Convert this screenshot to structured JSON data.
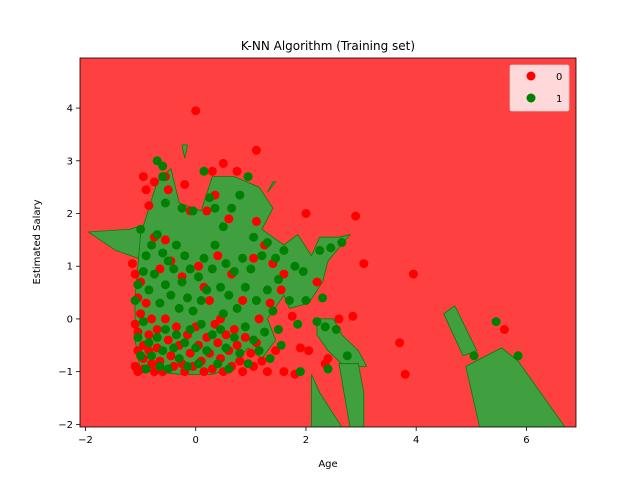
{
  "chart_data": {
    "type": "scatter",
    "title": "K-NN Algorithm (Training set)",
    "xlabel": "Age",
    "ylabel": "Estimated Salary",
    "xlim": [
      -2.1,
      6.9
    ],
    "ylim": [
      -2.05,
      4.95
    ],
    "xticks": [
      -2,
      0,
      2,
      4,
      6
    ],
    "yticks": [
      -2,
      -1,
      0,
      1,
      2,
      3,
      4
    ],
    "grid": false,
    "legend": {
      "placement": "top-right",
      "entries": [
        "0",
        "1"
      ]
    },
    "colors": {
      "class0": "#ff0000",
      "class1": "#008000",
      "region0": "#ff4040",
      "region1": "#40a040"
    },
    "background_class": "0",
    "decision_regions": [
      {
        "class": "1",
        "points": [
          [
            -1.95,
            1.65
          ],
          [
            -1.2,
            1.7
          ],
          [
            -0.5,
            1.9
          ],
          [
            -0.3,
            1.5
          ],
          [
            -0.9,
            1.1
          ],
          [
            -1.45,
            1.3
          ]
        ]
      },
      {
        "class": "1",
        "points": [
          [
            -1.1,
            0.4
          ],
          [
            -1.0,
            1.6
          ],
          [
            -0.7,
            2.6
          ],
          [
            -0.45,
            2.85
          ],
          [
            -0.3,
            2.2
          ],
          [
            0.1,
            2.05
          ],
          [
            0.3,
            2.7
          ],
          [
            0.7,
            2.7
          ],
          [
            1.15,
            2.5
          ],
          [
            1.4,
            2.1
          ],
          [
            1.2,
            1.7
          ],
          [
            1.6,
            1.4
          ],
          [
            1.85,
            1.6
          ],
          [
            2.1,
            1.2
          ],
          [
            2.25,
            1.55
          ],
          [
            2.6,
            1.55
          ],
          [
            2.8,
            1.6
          ],
          [
            2.4,
            1.1
          ],
          [
            2.3,
            0.7
          ],
          [
            2.05,
            0.3
          ],
          [
            1.7,
            0.2
          ],
          [
            1.6,
            0.45
          ],
          [
            1.3,
            0.0
          ],
          [
            1.45,
            -0.4
          ],
          [
            1.2,
            -0.75
          ],
          [
            0.95,
            -0.55
          ],
          [
            0.6,
            -0.95
          ],
          [
            0.3,
            -1.05
          ],
          [
            -0.3,
            -1.05
          ],
          [
            -0.7,
            -1.0
          ],
          [
            -1.0,
            -1.0
          ],
          [
            -1.1,
            -0.4
          ]
        ]
      },
      {
        "class": "1",
        "points": [
          [
            -0.25,
            3.3
          ],
          [
            -0.15,
            3.3
          ],
          [
            -0.2,
            3.05
          ]
        ]
      },
      {
        "class": "1",
        "points": [
          [
            1.4,
            2.6
          ],
          [
            1.45,
            2.6
          ],
          [
            1.3,
            2.4
          ]
        ]
      },
      {
        "class": "1",
        "points": [
          [
            2.2,
            0.0
          ],
          [
            2.5,
            0.0
          ],
          [
            2.65,
            -0.3
          ],
          [
            2.95,
            -0.6
          ],
          [
            3.1,
            -0.9
          ],
          [
            2.7,
            -0.9
          ],
          [
            2.4,
            -0.6
          ],
          [
            2.2,
            -0.3
          ]
        ]
      },
      {
        "class": "1",
        "points": [
          [
            2.6,
            -0.85
          ],
          [
            2.95,
            -0.85
          ],
          [
            3.05,
            -1.4
          ],
          [
            3.05,
            -2.05
          ],
          [
            2.8,
            -2.05
          ]
        ]
      },
      {
        "class": "1",
        "points": [
          [
            2.1,
            -1.05
          ],
          [
            2.25,
            -1.4
          ],
          [
            2.65,
            -2.05
          ],
          [
            2.1,
            -2.05
          ]
        ]
      },
      {
        "class": "1",
        "points": [
          [
            4.5,
            0.1
          ],
          [
            4.7,
            0.25
          ],
          [
            5.1,
            -0.6
          ],
          [
            4.85,
            -0.7
          ]
        ]
      },
      {
        "class": "1",
        "points": [
          [
            4.9,
            -0.9
          ],
          [
            5.55,
            -0.55
          ],
          [
            5.85,
            -0.8
          ],
          [
            6.7,
            -2.05
          ],
          [
            5.15,
            -2.05
          ]
        ]
      }
    ],
    "series": [
      {
        "name": "0",
        "points": [
          [
            -1.15,
            1.05
          ],
          [
            -1.1,
            0.85
          ],
          [
            -1.05,
            0.4
          ],
          [
            -1.1,
            -0.1
          ],
          [
            -1.05,
            -0.25
          ],
          [
            -1.05,
            -0.6
          ],
          [
            -1.1,
            -0.9
          ],
          [
            -1.05,
            -1.0
          ],
          [
            -1.0,
            0.1
          ],
          [
            -0.95,
            -0.5
          ],
          [
            -0.95,
            -0.75
          ],
          [
            -0.95,
            -0.95
          ],
          [
            -0.9,
            0.3
          ],
          [
            -0.85,
            -0.3
          ],
          [
            -0.85,
            -0.6
          ],
          [
            -0.8,
            -0.85
          ],
          [
            -0.75,
            -1.0
          ],
          [
            -0.7,
            -0.2
          ],
          [
            -0.7,
            -0.55
          ],
          [
            -0.65,
            -0.8
          ],
          [
            -0.6,
            -1.0
          ],
          [
            -0.55,
            0.0
          ],
          [
            -0.5,
            -0.4
          ],
          [
            -0.45,
            -0.7
          ],
          [
            -0.4,
            -0.9
          ],
          [
            -0.35,
            -0.15
          ],
          [
            -0.3,
            -0.5
          ],
          [
            -0.25,
            -0.85
          ],
          [
            -0.2,
            -1.0
          ],
          [
            -0.15,
            -0.3
          ],
          [
            -0.1,
            -0.65
          ],
          [
            -0.05,
            -0.9
          ],
          [
            0.0,
            -0.15
          ],
          [
            0.05,
            -0.5
          ],
          [
            0.1,
            -0.8
          ],
          [
            0.15,
            -1.0
          ],
          [
            0.2,
            -0.35
          ],
          [
            0.25,
            -0.65
          ],
          [
            0.3,
            -0.95
          ],
          [
            0.35,
            -0.1
          ],
          [
            0.4,
            -0.45
          ],
          [
            0.45,
            -0.75
          ],
          [
            0.5,
            -1.0
          ],
          [
            0.55,
            -0.3
          ],
          [
            0.6,
            -0.6
          ],
          [
            0.65,
            -0.9
          ],
          [
            0.7,
            -0.2
          ],
          [
            0.75,
            -0.5
          ],
          [
            0.8,
            -0.8
          ],
          [
            0.85,
            -1.0
          ],
          [
            0.9,
            -0.35
          ],
          [
            1.0,
            -0.65
          ],
          [
            1.05,
            -0.9
          ],
          [
            1.1,
            -0.45
          ],
          [
            1.2,
            -0.8
          ],
          [
            1.3,
            -1.0
          ],
          [
            1.45,
            -0.6
          ],
          [
            1.6,
            -1.0
          ],
          [
            1.8,
            -1.05
          ],
          [
            1.9,
            -0.55
          ],
          [
            2.05,
            -0.6
          ],
          [
            2.35,
            -0.85
          ],
          [
            2.4,
            -0.75
          ],
          [
            2.6,
            0.0
          ],
          [
            2.85,
            0.05
          ],
          [
            -0.95,
            2.7
          ],
          [
            -0.9,
            2.45
          ],
          [
            -0.85,
            2.15
          ],
          [
            -0.75,
            2.6
          ],
          [
            -0.55,
            2.7
          ],
          [
            -0.5,
            2.45
          ],
          [
            -0.2,
            2.55
          ],
          [
            -0.1,
            2.05
          ],
          [
            0.0,
            3.95
          ],
          [
            0.2,
            2.05
          ],
          [
            0.3,
            2.8
          ],
          [
            0.35,
            2.35
          ],
          [
            0.5,
            2.95
          ],
          [
            0.6,
            1.9
          ],
          [
            0.75,
            2.8
          ],
          [
            1.1,
            3.2
          ],
          [
            1.1,
            1.85
          ],
          [
            1.25,
            1.4
          ],
          [
            1.4,
            1.05
          ],
          [
            1.6,
            0.85
          ],
          [
            2.0,
            2.0
          ],
          [
            2.2,
            0.7
          ],
          [
            2.9,
            1.95
          ],
          [
            3.05,
            1.05
          ],
          [
            3.7,
            -0.45
          ],
          [
            3.8,
            -1.05
          ],
          [
            3.95,
            0.85
          ],
          [
            5.6,
            -0.2
          ],
          [
            -0.55,
            1.5
          ],
          [
            -0.65,
            0.95
          ],
          [
            -0.45,
            1.1
          ],
          [
            -0.25,
            0.8
          ],
          [
            0.05,
            1.0
          ],
          [
            0.25,
            0.35
          ],
          [
            0.4,
            1.2
          ],
          [
            0.65,
            0.85
          ],
          [
            0.85,
            0.35
          ],
          [
            1.05,
            1.15
          ],
          [
            1.35,
            0.3
          ],
          [
            1.55,
            0.55
          ],
          [
            1.75,
            0.05
          ],
          [
            -0.75,
            1.55
          ],
          [
            -1.0,
            0.7
          ],
          [
            -0.8,
            0.0
          ],
          [
            0.15,
            0.6
          ],
          [
            0.45,
            0.0
          ],
          [
            1.15,
            0.0
          ]
        ]
      },
      {
        "name": "1",
        "points": [
          [
            -0.7,
            3.0
          ],
          [
            -0.6,
            2.9
          ],
          [
            -0.6,
            2.7
          ],
          [
            -0.55,
            2.2
          ],
          [
            -0.25,
            2.1
          ],
          [
            -0.05,
            2.05
          ],
          [
            0.15,
            2.8
          ],
          [
            0.25,
            2.3
          ],
          [
            0.35,
            2.1
          ],
          [
            0.5,
            1.75
          ],
          [
            0.65,
            2.1
          ],
          [
            0.8,
            2.35
          ],
          [
            0.95,
            2.7
          ],
          [
            1.05,
            1.55
          ],
          [
            1.3,
            1.45
          ],
          [
            1.45,
            1.15
          ],
          [
            1.6,
            1.3
          ],
          [
            1.8,
            1.0
          ],
          [
            1.95,
            0.9
          ],
          [
            2.25,
            1.3
          ],
          [
            2.45,
            1.35
          ],
          [
            2.65,
            1.45
          ],
          [
            -1.1,
            0.35
          ],
          [
            -1.05,
            0.65
          ],
          [
            -1.0,
            1.7
          ],
          [
            -0.95,
            0.9
          ],
          [
            -0.9,
            1.2
          ],
          [
            -0.85,
            0.55
          ],
          [
            -0.8,
            1.4
          ],
          [
            -0.75,
            0.85
          ],
          [
            -0.7,
            1.6
          ],
          [
            -0.65,
            0.3
          ],
          [
            -0.6,
            1.25
          ],
          [
            -0.55,
            0.65
          ],
          [
            -0.5,
            1.1
          ],
          [
            -0.45,
            0.45
          ],
          [
            -0.4,
            0.95
          ],
          [
            -0.35,
            1.4
          ],
          [
            -0.3,
            0.2
          ],
          [
            -0.25,
            0.7
          ],
          [
            -0.2,
            1.2
          ],
          [
            -0.15,
            0.4
          ],
          [
            -0.1,
            0.95
          ],
          [
            -0.05,
            0.15
          ],
          [
            0.05,
            0.8
          ],
          [
            0.1,
            0.35
          ],
          [
            0.15,
            1.15
          ],
          [
            0.2,
            0.55
          ],
          [
            0.3,
            0.95
          ],
          [
            0.35,
            1.4
          ],
          [
            0.45,
            0.6
          ],
          [
            0.5,
            0.1
          ],
          [
            0.55,
            1.05
          ],
          [
            0.6,
            0.45
          ],
          [
            0.7,
            0.9
          ],
          [
            0.75,
            0.2
          ],
          [
            0.85,
            1.15
          ],
          [
            0.9,
            0.6
          ],
          [
            1.0,
            0.95
          ],
          [
            1.1,
            0.35
          ],
          [
            1.2,
            1.2
          ],
          [
            1.3,
            0.55
          ],
          [
            1.4,
            0.15
          ],
          [
            1.5,
            0.75
          ],
          [
            1.7,
            0.35
          ],
          [
            1.85,
            -0.1
          ],
          [
            2.0,
            0.35
          ],
          [
            2.3,
            0.4
          ],
          [
            -1.05,
            -0.35
          ],
          [
            -1.0,
            -0.7
          ],
          [
            -0.95,
            -0.05
          ],
          [
            -0.9,
            -0.95
          ],
          [
            -0.85,
            -0.45
          ],
          [
            -0.8,
            -0.7
          ],
          [
            -0.7,
            -0.35
          ],
          [
            -0.65,
            -0.9
          ],
          [
            -0.6,
            -0.6
          ],
          [
            -0.55,
            -0.2
          ],
          [
            -0.5,
            -0.95
          ],
          [
            -0.4,
            -0.55
          ],
          [
            -0.35,
            -0.3
          ],
          [
            -0.3,
            -0.75
          ],
          [
            -0.2,
            -0.45
          ],
          [
            -0.15,
            -0.9
          ],
          [
            -0.1,
            -0.2
          ],
          [
            0.0,
            -0.55
          ],
          [
            0.05,
            -0.85
          ],
          [
            0.1,
            -0.1
          ],
          [
            0.2,
            -0.6
          ],
          [
            0.3,
            -0.3
          ],
          [
            0.4,
            -0.85
          ],
          [
            0.45,
            -0.2
          ],
          [
            0.55,
            -0.55
          ],
          [
            0.6,
            -0.95
          ],
          [
            0.7,
            -0.35
          ],
          [
            0.8,
            -0.65
          ],
          [
            0.9,
            -0.15
          ],
          [
            0.95,
            -0.85
          ],
          [
            1.05,
            -0.4
          ],
          [
            1.15,
            -0.6
          ],
          [
            1.25,
            -0.25
          ],
          [
            1.35,
            -0.75
          ],
          [
            1.5,
            -0.2
          ],
          [
            1.55,
            -0.5
          ],
          [
            1.9,
            -1.0
          ],
          [
            2.2,
            -0.05
          ],
          [
            2.35,
            -0.15
          ],
          [
            2.4,
            -0.95
          ],
          [
            2.55,
            -0.2
          ],
          [
            2.75,
            -0.7
          ],
          [
            5.05,
            -0.7
          ],
          [
            5.45,
            -0.05
          ],
          [
            5.85,
            -0.7
          ]
        ]
      }
    ]
  }
}
